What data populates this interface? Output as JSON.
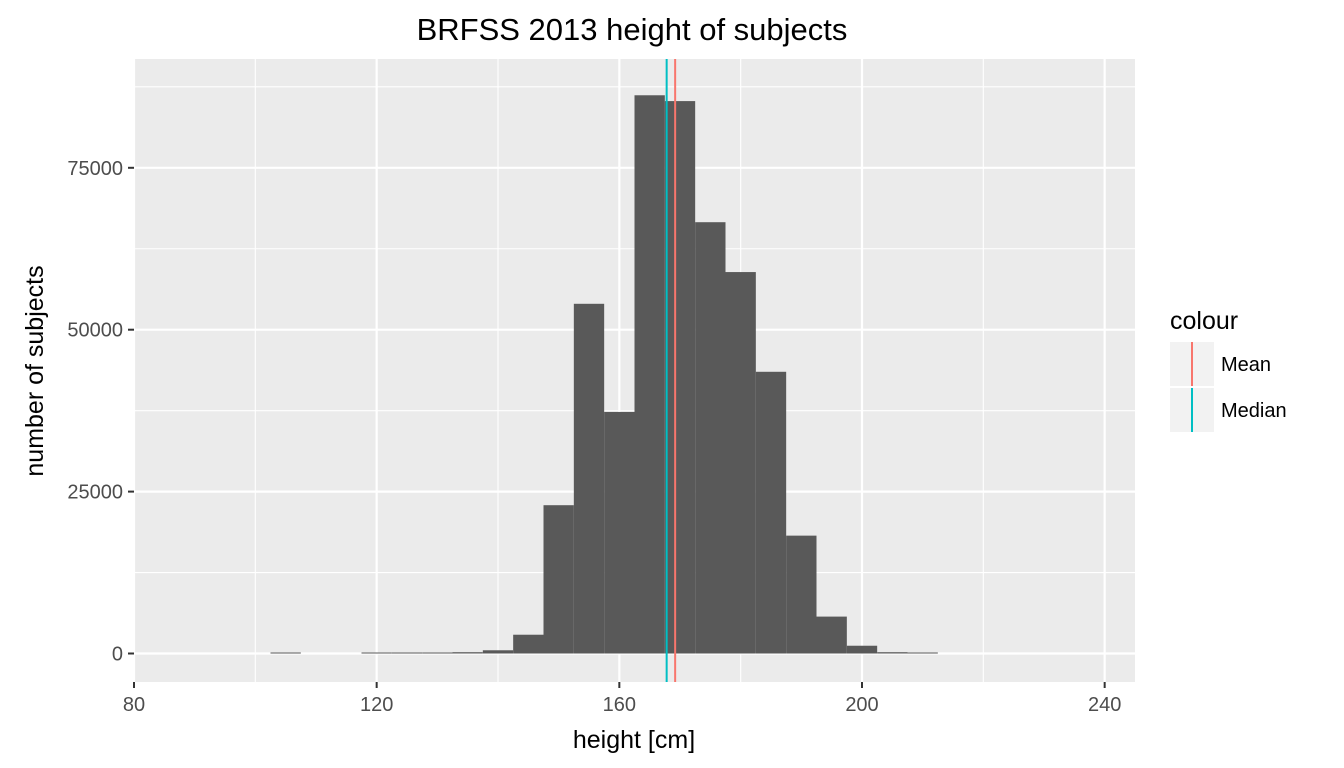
{
  "chart_data": {
    "type": "bar",
    "title": "BRFSS 2013 height of subjects",
    "xlabel": "height [cm]",
    "ylabel": "number of subjects",
    "xlim": [
      80,
      245
    ],
    "ylim": [
      -4400,
      91800
    ],
    "xticks": [
      80,
      120,
      160,
      200,
      240
    ],
    "xtick_labels": [
      "80",
      "120",
      "160",
      "200",
      "240"
    ],
    "yticks": [
      0,
      25000,
      50000,
      75000
    ],
    "ytick_labels": [
      "0",
      "25000",
      "50000",
      "75000"
    ],
    "grid": true,
    "bins": [
      {
        "x0": 102.5,
        "x1": 107.5,
        "count": 60
      },
      {
        "x0": 117.5,
        "x1": 122.5,
        "count": 80
      },
      {
        "x0": 122.5,
        "x1": 127.5,
        "count": 60
      },
      {
        "x0": 127.5,
        "x1": 132.5,
        "count": 80
      },
      {
        "x0": 132.5,
        "x1": 137.5,
        "count": 200
      },
      {
        "x0": 137.5,
        "x1": 142.5,
        "count": 500
      },
      {
        "x0": 142.5,
        "x1": 147.5,
        "count": 2900
      },
      {
        "x0": 147.5,
        "x1": 152.5,
        "count": 22900
      },
      {
        "x0": 152.5,
        "x1": 157.5,
        "count": 54000
      },
      {
        "x0": 157.5,
        "x1": 162.5,
        "count": 37300
      },
      {
        "x0": 162.5,
        "x1": 167.5,
        "count": 86200
      },
      {
        "x0": 167.5,
        "x1": 172.5,
        "count": 85300
      },
      {
        "x0": 172.5,
        "x1": 177.5,
        "count": 66600
      },
      {
        "x0": 177.5,
        "x1": 182.5,
        "count": 58900
      },
      {
        "x0": 182.5,
        "x1": 187.5,
        "count": 43500
      },
      {
        "x0": 187.5,
        "x1": 192.5,
        "count": 18200
      },
      {
        "x0": 192.5,
        "x1": 197.5,
        "count": 5700
      },
      {
        "x0": 197.5,
        "x1": 202.5,
        "count": 1200
      },
      {
        "x0": 202.5,
        "x1": 207.5,
        "count": 200
      },
      {
        "x0": 207.5,
        "x1": 212.5,
        "count": 100
      }
    ],
    "bar_color": "#595959",
    "vlines": [
      {
        "name": "Mean",
        "x": 169.2,
        "color": "#F8766D"
      },
      {
        "name": "Median",
        "x": 167.8,
        "color": "#00BFC4"
      }
    ],
    "legend": {
      "title": "colour",
      "position": "right",
      "entries": [
        {
          "label": "Mean",
          "color": "#F8766D"
        },
        {
          "label": "Median",
          "color": "#00BFC4"
        }
      ]
    },
    "panel_background": "#EBEBEB",
    "grid_color": "#FFFFFF"
  }
}
